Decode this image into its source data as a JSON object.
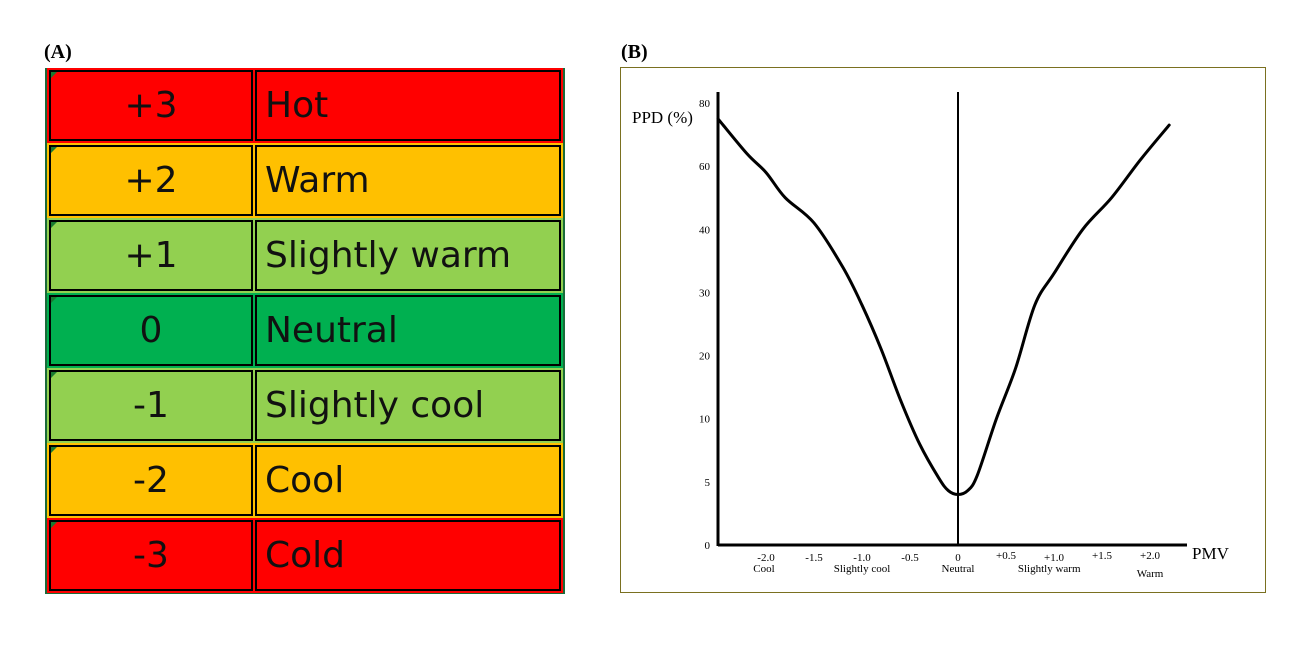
{
  "panel_a": {
    "label": "(A)",
    "rows": [
      {
        "value": "+3",
        "sensation": "Hot",
        "color": "#ff0000"
      },
      {
        "value": "+2",
        "sensation": "Warm",
        "color": "#ffc000"
      },
      {
        "value": "+1",
        "sensation": "Slightly warm",
        "color": "#92d050"
      },
      {
        "value": "0",
        "sensation": "Neutral",
        "color": "#00b050"
      },
      {
        "value": "-1",
        "sensation": "Slightly cool",
        "color": "#92d050"
      },
      {
        "value": "-2",
        "sensation": "Cool",
        "color": "#ffc000"
      },
      {
        "value": "-3",
        "sensation": "Cold",
        "color": "#ff0000"
      }
    ]
  },
  "panel_b": {
    "label": "(B)"
  },
  "chart_data": {
    "type": "line",
    "title": "",
    "xlabel": "PMV",
    "ylabel": "PPD (%)",
    "xlim": [
      -2.5,
      2.5
    ],
    "ylim": [
      0,
      80
    ],
    "grid": false,
    "y_ticks": [
      0,
      5,
      10,
      20,
      30,
      40,
      60,
      80
    ],
    "y_tick_labels": [
      "0",
      "5",
      "10",
      "20",
      "30",
      "40",
      "60",
      "80"
    ],
    "x_ticks": [
      -2.0,
      -1.5,
      -1.0,
      -0.5,
      0,
      0.5,
      1.0,
      1.5,
      2.0
    ],
    "x_tick_labels": [
      "-2.0",
      "-1.5",
      "-1.0",
      "-0.5",
      "0",
      "+0.5",
      "+1.0",
      "+1.5",
      "+2.0"
    ],
    "category_labels": [
      {
        "x": -2.0,
        "text": "Cool"
      },
      {
        "x": -1.0,
        "text": "Slightly cool"
      },
      {
        "x": 0,
        "text": "Neutral"
      },
      {
        "x": 1.0,
        "text": "Slightly warm"
      },
      {
        "x": 2.0,
        "text": "Warm"
      }
    ],
    "series": [
      {
        "name": "PPD",
        "x": [
          -2.5,
          -2.2,
          -2.0,
          -1.8,
          -1.5,
          -1.2,
          -1.0,
          -0.8,
          -0.6,
          -0.4,
          -0.2,
          -0.1,
          0.0,
          0.1,
          0.2,
          0.4,
          0.6,
          0.8,
          1.0,
          1.3,
          1.6,
          1.9,
          2.2
        ],
        "y": [
          75,
          64,
          58,
          50,
          42,
          34,
          28,
          21,
          13,
          8,
          5.3,
          4.3,
          4,
          4.3,
          5.5,
          10,
          18,
          28,
          33,
          40,
          50,
          62,
          73
        ]
      }
    ]
  }
}
